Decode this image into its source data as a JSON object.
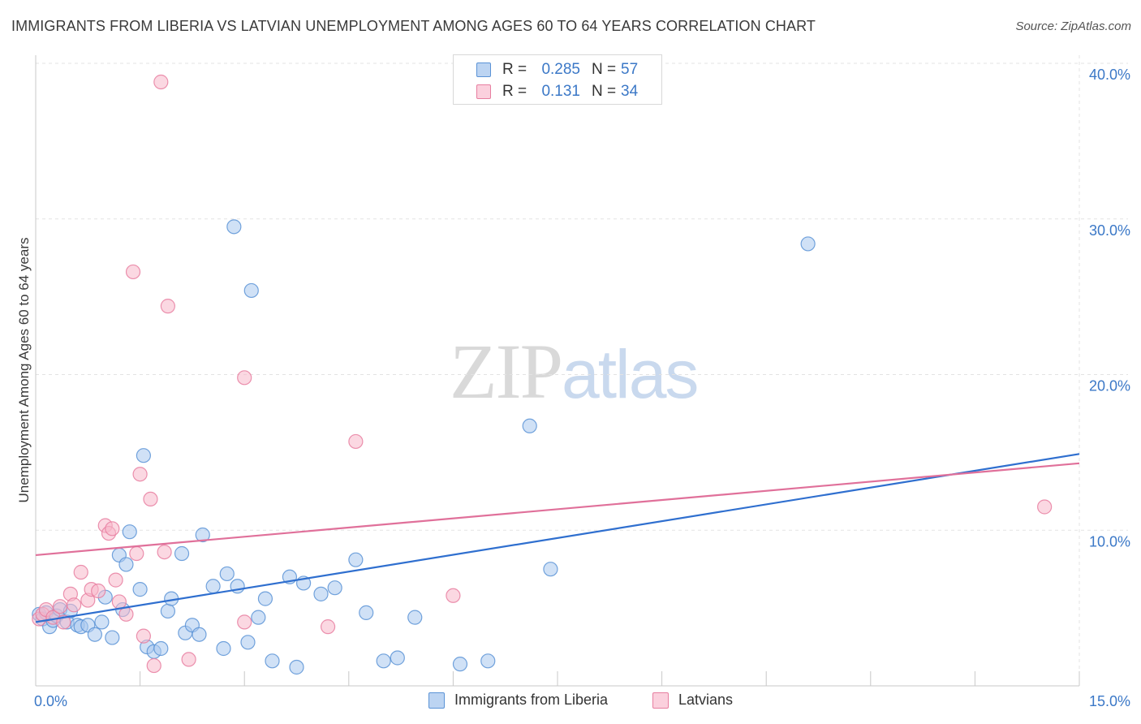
{
  "header": {
    "title": "IMMIGRANTS FROM LIBERIA VS LATVIAN UNEMPLOYMENT AMONG AGES 60 TO 64 YEARS CORRELATION CHART",
    "source": "Source: ZipAtlas.com"
  },
  "watermark": {
    "zip": "ZIP",
    "atlas": "atlas"
  },
  "legend_top": {
    "rows": [
      {
        "r_label": "R =",
        "r_value": "0.285",
        "n_label": "N =",
        "n_value": "57"
      },
      {
        "r_label": "R =",
        "r_value": "0.131",
        "n_label": "N =",
        "n_value": "34"
      }
    ]
  },
  "colors": {
    "blue_fill": "#a9c8ee",
    "blue_stroke": "#5b93d6",
    "blue_line": "#2f6fcf",
    "pink_fill": "#f7b8cb",
    "pink_stroke": "#e77ea0",
    "pink_line": "#e0709a",
    "tick_label": "#3b78c7",
    "grid": "#e3e3e3"
  },
  "chart_data": {
    "type": "scatter",
    "title": "IMMIGRANTS FROM LIBERIA VS LATVIAN UNEMPLOYMENT AMONG AGES 60 TO 64 YEARS CORRELATION CHART",
    "xlabel": "",
    "ylabel": "Unemployment Among Ages 60 to 64 years",
    "xlim": [
      0,
      15
    ],
    "ylim": [
      0,
      40
    ],
    "x_tick_labels": [
      {
        "value": 0,
        "label": "0.0%"
      },
      {
        "value": 15,
        "label": "15.0%"
      }
    ],
    "y_tick_labels": [
      {
        "value": 10,
        "label": "10.0%"
      },
      {
        "value": 20,
        "label": "20.0%"
      },
      {
        "value": 30,
        "label": "30.0%"
      },
      {
        "value": 40,
        "label": "40.0%"
      }
    ],
    "grid": true,
    "legend_position": "bottom",
    "series": [
      {
        "name": "Immigrants from Liberia",
        "color": "#a9c8ee",
        "regression": {
          "x": [
            0,
            15
          ],
          "y": [
            4.1,
            14.9
          ]
        },
        "points": [
          {
            "x": 0.05,
            "y": 4.6
          },
          {
            "x": 0.1,
            "y": 4.3
          },
          {
            "x": 0.15,
            "y": 4.7
          },
          {
            "x": 0.2,
            "y": 3.8
          },
          {
            "x": 0.25,
            "y": 4.2
          },
          {
            "x": 0.3,
            "y": 4.5
          },
          {
            "x": 0.35,
            "y": 4.9
          },
          {
            "x": 0.45,
            "y": 4.1
          },
          {
            "x": 0.5,
            "y": 4.8
          },
          {
            "x": 0.6,
            "y": 3.9
          },
          {
            "x": 0.65,
            "y": 3.8
          },
          {
            "x": 0.75,
            "y": 3.9
          },
          {
            "x": 0.85,
            "y": 3.3
          },
          {
            "x": 0.95,
            "y": 4.1
          },
          {
            "x": 1.0,
            "y": 5.7
          },
          {
            "x": 1.1,
            "y": 3.1
          },
          {
            "x": 1.2,
            "y": 8.4
          },
          {
            "x": 1.25,
            "y": 4.9
          },
          {
            "x": 1.3,
            "y": 7.8
          },
          {
            "x": 1.35,
            "y": 9.9
          },
          {
            "x": 1.5,
            "y": 6.2
          },
          {
            "x": 1.55,
            "y": 14.8
          },
          {
            "x": 1.6,
            "y": 2.5
          },
          {
            "x": 1.7,
            "y": 2.2
          },
          {
            "x": 1.8,
            "y": 2.4
          },
          {
            "x": 1.9,
            "y": 4.8
          },
          {
            "x": 1.95,
            "y": 5.6
          },
          {
            "x": 2.1,
            "y": 8.5
          },
          {
            "x": 2.15,
            "y": 3.4
          },
          {
            "x": 2.25,
            "y": 3.9
          },
          {
            "x": 2.35,
            "y": 3.3
          },
          {
            "x": 2.4,
            "y": 9.7
          },
          {
            "x": 2.55,
            "y": 6.4
          },
          {
            "x": 2.7,
            "y": 2.4
          },
          {
            "x": 2.75,
            "y": 7.2
          },
          {
            "x": 2.85,
            "y": 29.5
          },
          {
            "x": 2.9,
            "y": 6.4
          },
          {
            "x": 3.05,
            "y": 2.8
          },
          {
            "x": 3.1,
            "y": 25.4
          },
          {
            "x": 3.2,
            "y": 4.4
          },
          {
            "x": 3.3,
            "y": 5.6
          },
          {
            "x": 3.4,
            "y": 1.6
          },
          {
            "x": 3.65,
            "y": 7.0
          },
          {
            "x": 3.75,
            "y": 1.2
          },
          {
            "x": 3.85,
            "y": 6.6
          },
          {
            "x": 4.1,
            "y": 5.9
          },
          {
            "x": 4.3,
            "y": 6.3
          },
          {
            "x": 4.6,
            "y": 8.1
          },
          {
            "x": 4.75,
            "y": 4.7
          },
          {
            "x": 5.0,
            "y": 1.6
          },
          {
            "x": 5.2,
            "y": 1.8
          },
          {
            "x": 5.45,
            "y": 4.4
          },
          {
            "x": 6.1,
            "y": 1.4
          },
          {
            "x": 6.5,
            "y": 1.6
          },
          {
            "x": 7.1,
            "y": 16.7
          },
          {
            "x": 7.4,
            "y": 7.5
          },
          {
            "x": 11.1,
            "y": 28.4
          }
        ]
      },
      {
        "name": "Latvians",
        "color": "#f7b8cb",
        "regression": {
          "x": [
            0,
            15
          ],
          "y": [
            8.4,
            14.3
          ]
        },
        "points": [
          {
            "x": 0.05,
            "y": 4.3
          },
          {
            "x": 0.1,
            "y": 4.6
          },
          {
            "x": 0.15,
            "y": 4.9
          },
          {
            "x": 0.25,
            "y": 4.4
          },
          {
            "x": 0.35,
            "y": 5.1
          },
          {
            "x": 0.4,
            "y": 4.1
          },
          {
            "x": 0.5,
            "y": 5.9
          },
          {
            "x": 0.55,
            "y": 5.2
          },
          {
            "x": 0.65,
            "y": 7.3
          },
          {
            "x": 0.75,
            "y": 5.5
          },
          {
            "x": 0.8,
            "y": 6.2
          },
          {
            "x": 0.9,
            "y": 6.1
          },
          {
            "x": 1.0,
            "y": 10.3
          },
          {
            "x": 1.05,
            "y": 9.8
          },
          {
            "x": 1.1,
            "y": 10.1
          },
          {
            "x": 1.15,
            "y": 6.8
          },
          {
            "x": 1.2,
            "y": 5.4
          },
          {
            "x": 1.3,
            "y": 4.6
          },
          {
            "x": 1.4,
            "y": 26.6
          },
          {
            "x": 1.45,
            "y": 8.5
          },
          {
            "x": 1.55,
            "y": 3.2
          },
          {
            "x": 1.5,
            "y": 13.6
          },
          {
            "x": 1.65,
            "y": 12.0
          },
          {
            "x": 1.7,
            "y": 1.3
          },
          {
            "x": 1.8,
            "y": 38.8
          },
          {
            "x": 1.85,
            "y": 8.6
          },
          {
            "x": 1.9,
            "y": 24.4
          },
          {
            "x": 2.2,
            "y": 1.7
          },
          {
            "x": 3.0,
            "y": 4.1
          },
          {
            "x": 3.0,
            "y": 19.8
          },
          {
            "x": 4.2,
            "y": 3.8
          },
          {
            "x": 4.6,
            "y": 15.7
          },
          {
            "x": 6.0,
            "y": 5.8
          },
          {
            "x": 14.5,
            "y": 11.5
          }
        ]
      }
    ]
  }
}
